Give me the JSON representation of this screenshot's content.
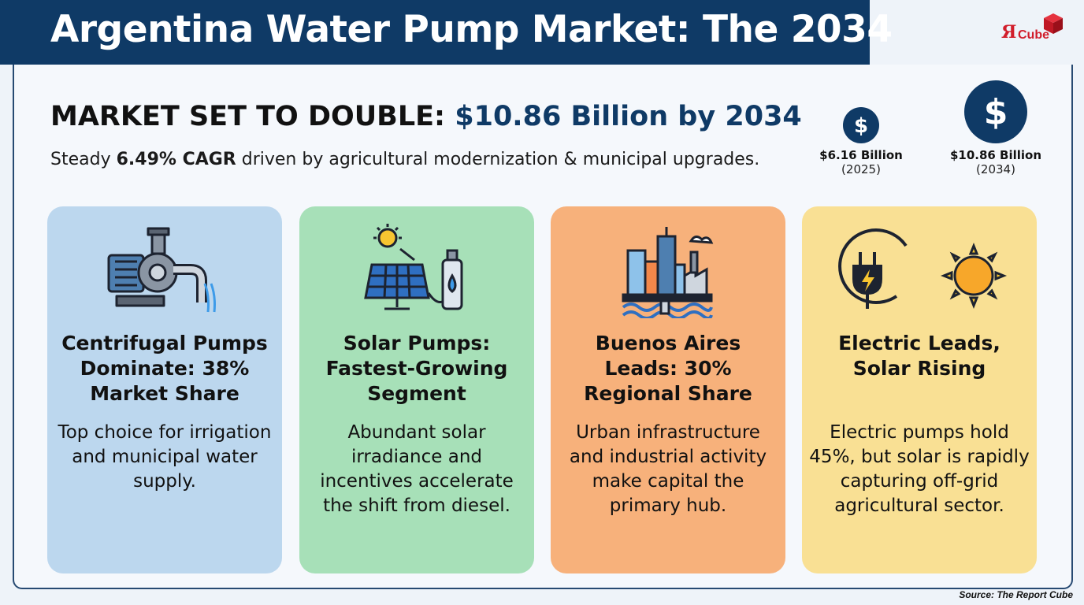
{
  "header": {
    "title": "Argentina Water Pump Market: The 2034",
    "logo": {
      "mark": "Я",
      "text": "Cube",
      "icon": "red-cube-icon"
    }
  },
  "headline": {
    "lead": "MARKET SET TO DOUBLE: ",
    "accent": "$10.86 Billion by 2034"
  },
  "subline": {
    "pre": "Steady ",
    "bold": "6.49% CAGR",
    "post": " driven by agricultural modernization & municipal upgrades."
  },
  "stats": [
    {
      "value": "$6.16 Billion",
      "year": "(2025)",
      "icon": "dollar-coin-icon"
    },
    {
      "value": "$10.86 Billion",
      "year": "(2034)",
      "icon": "dollar-coin-icon"
    }
  ],
  "cards": [
    {
      "title": "Centrifugal Pumps Dominate: 38% Market Share",
      "body": "Top choice for irrigation and municipal water supply.",
      "icon": "centrifugal-pump-icon",
      "color": "#bcd7ee"
    },
    {
      "title": "Solar Pumps: Fastest-Growing Segment",
      "body": "Abundant solar irradiance and incentives accelerate the shift from diesel.",
      "icon": "solar-panel-pump-icon",
      "color": "#a7e0b8"
    },
    {
      "title": "Buenos Aires Leads: 30% Regional Share",
      "body": "Urban infrastructure and industrial activity make capital the primary hub.",
      "icon": "city-skyline-icon",
      "color": "#f7b17b"
    },
    {
      "title": "Electric Leads, Solar Rising",
      "body": "Electric pumps hold 45%, but solar is rapidly capturing off-grid agricultural sector.",
      "icon": "plug-and-sun-icon",
      "color": "#f9e094"
    }
  ],
  "source": "Source: The Report Cube",
  "colors": {
    "navy": "#0f3a66",
    "brand_red": "#d11d2b"
  }
}
